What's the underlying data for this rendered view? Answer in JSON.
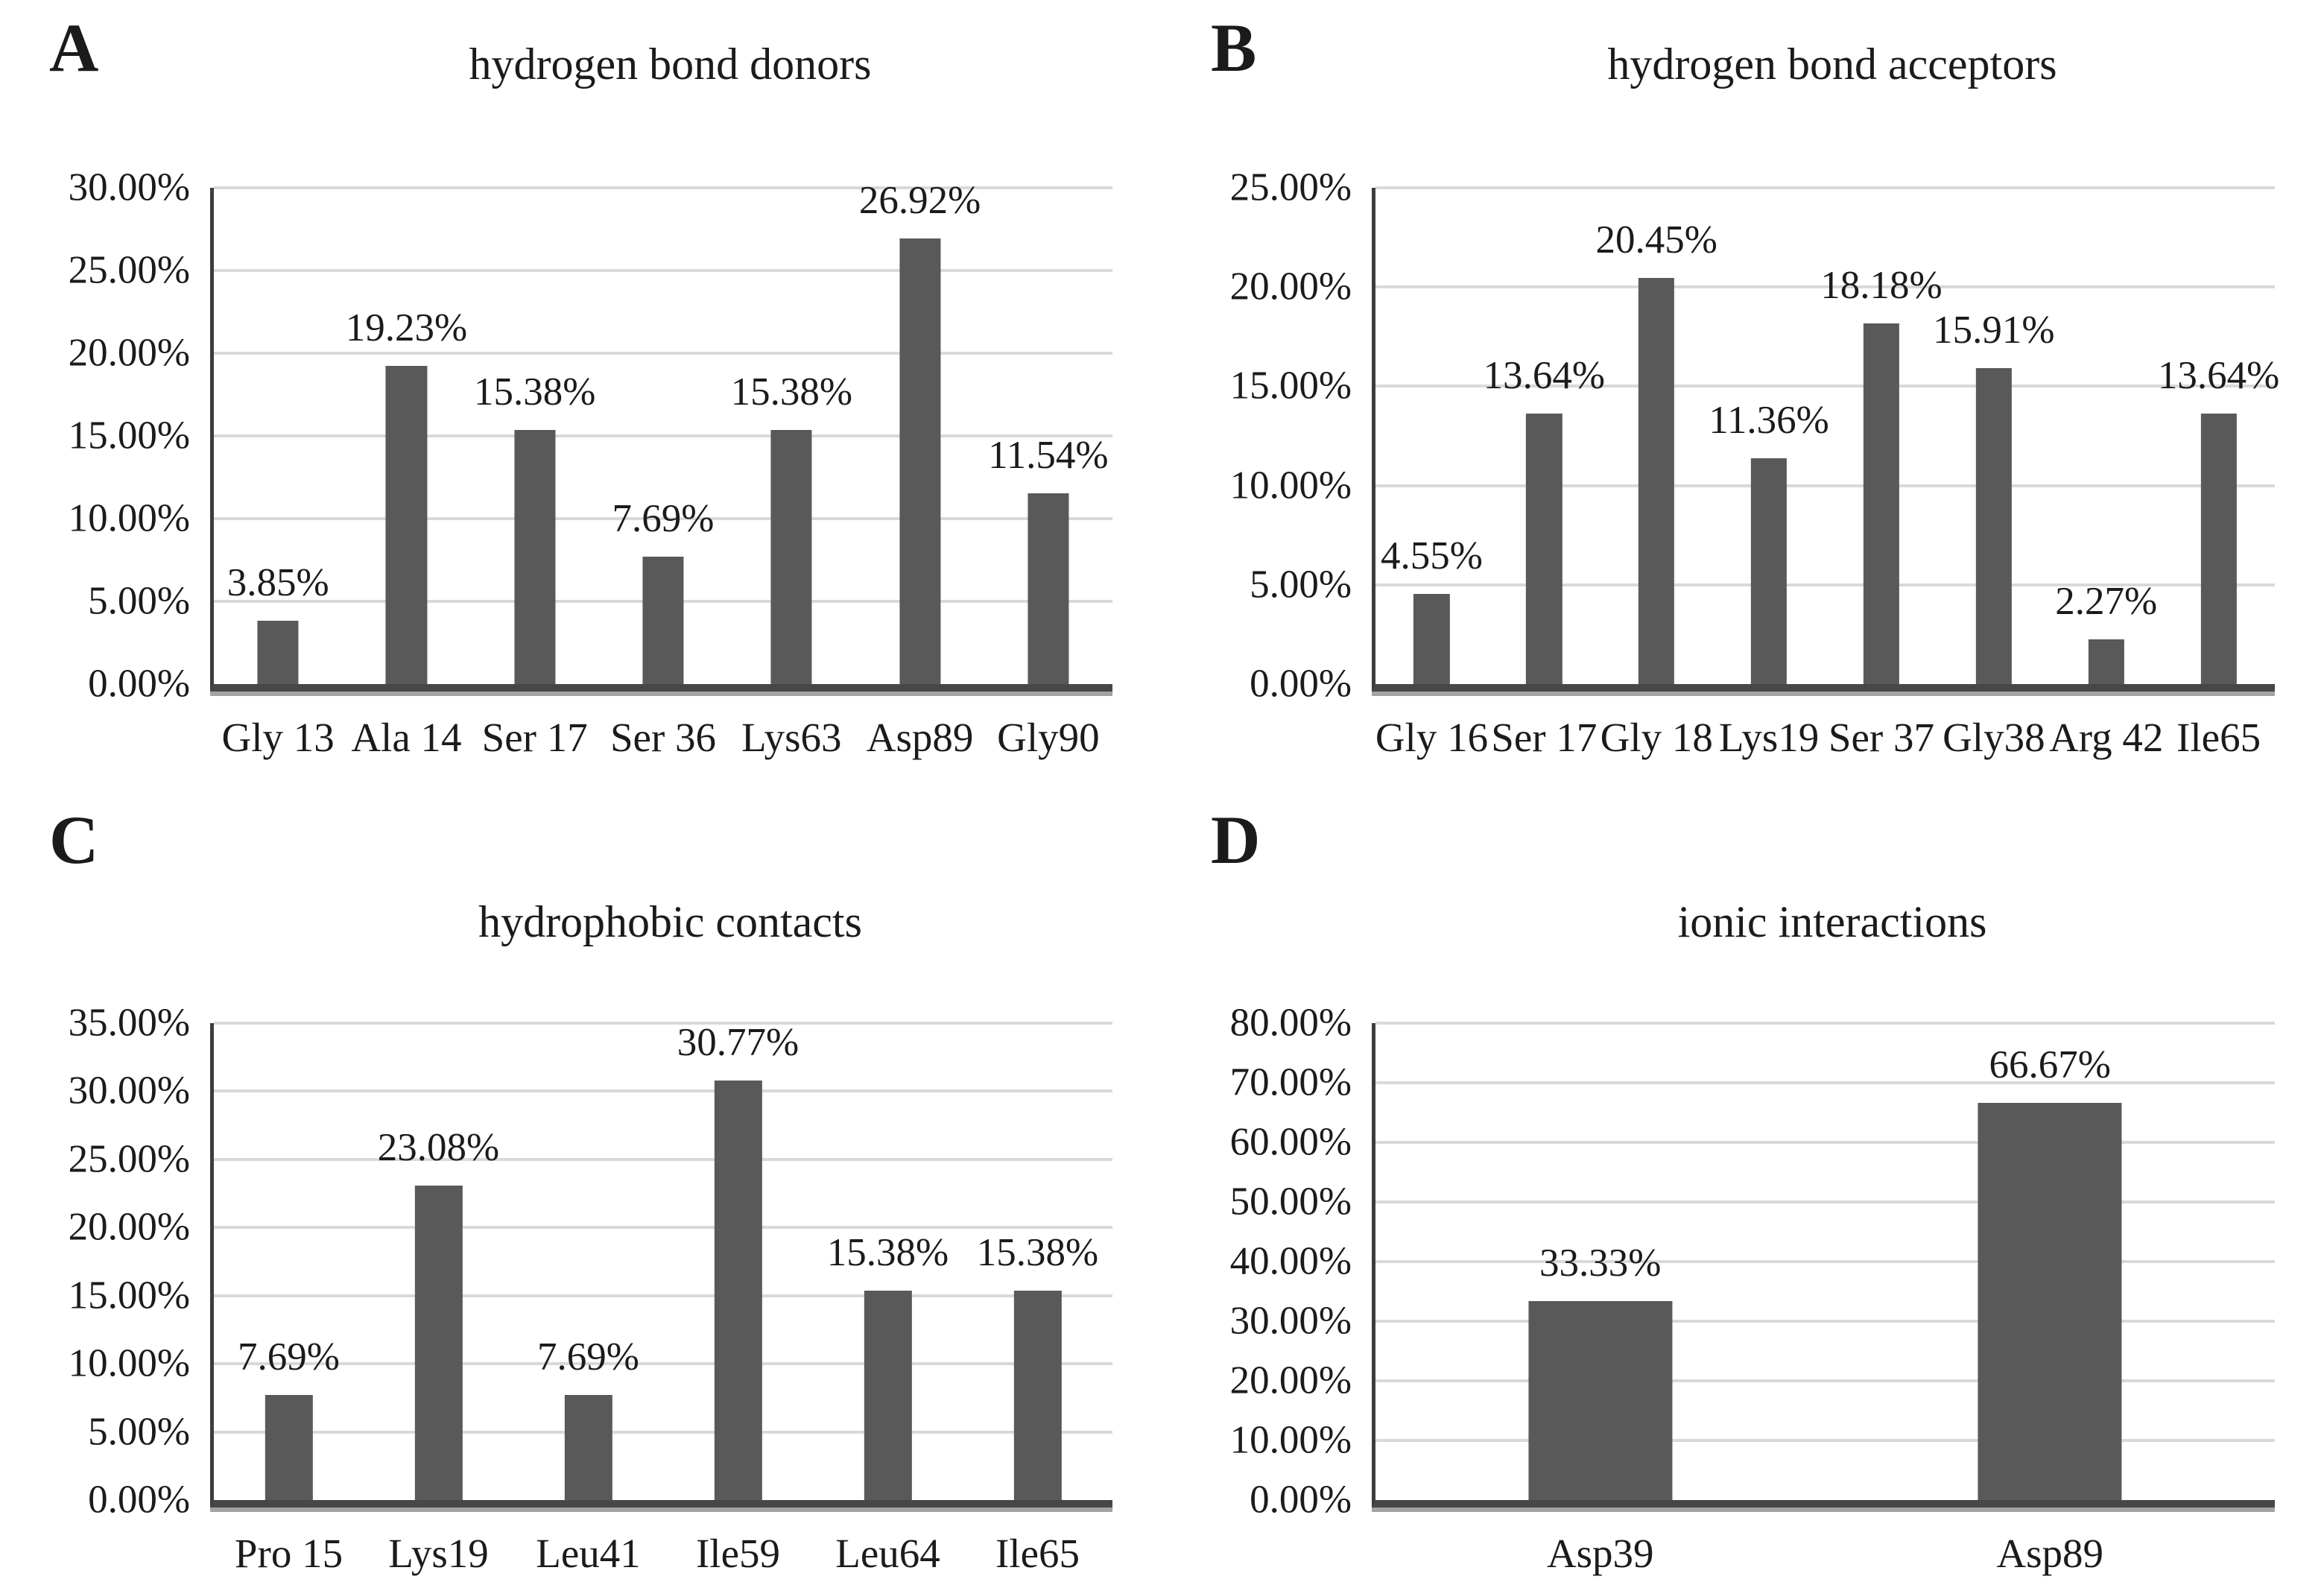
{
  "figure": {
    "background": "#ffffff",
    "bar_color": "#595959",
    "grid_color": "#d9d9d9",
    "axis_color": "#3d3d3d",
    "text_color": "#1b1b1b"
  },
  "chart_data": [
    {
      "type": "bar",
      "panel": "A",
      "title": "hydrogen bond donors",
      "categories": [
        "Gly 13",
        "Ala 14",
        "Ser 17",
        "Ser 36",
        "Lys63",
        "Asp89",
        "Gly90"
      ],
      "values": [
        3.85,
        19.23,
        15.38,
        7.69,
        15.38,
        26.92,
        11.54
      ],
      "value_labels": [
        "3.85%",
        "19.23%",
        "15.38%",
        "7.69%",
        "15.38%",
        "26.92%",
        "11.54%"
      ],
      "ylim": [
        0,
        30
      ],
      "ytick_step": 5,
      "ytick_labels": [
        "0.00%",
        "5.00%",
        "10.00%",
        "15.00%",
        "20.00%",
        "25.00%",
        "30.00%"
      ],
      "grid": true,
      "legend": null
    },
    {
      "type": "bar",
      "panel": "B",
      "title": "hydrogen bond acceptors",
      "categories": [
        "Gly 16",
        "Ser 17",
        "Gly 18",
        "Lys19",
        "Ser 37",
        "Gly38",
        "Arg 42",
        "Ile65"
      ],
      "values": [
        4.55,
        13.64,
        20.45,
        11.36,
        18.18,
        15.91,
        2.27,
        13.64
      ],
      "value_labels": [
        "4.55%",
        "13.64%",
        "20.45%",
        "11.36%",
        "18.18%",
        "15.91%",
        "2.27%",
        "13.64%"
      ],
      "ylim": [
        0,
        25
      ],
      "ytick_step": 5,
      "ytick_labels": [
        "0.00%",
        "5.00%",
        "10.00%",
        "15.00%",
        "20.00%",
        "25.00%"
      ],
      "grid": true,
      "legend": null
    },
    {
      "type": "bar",
      "panel": "C",
      "title": "hydrophobic contacts",
      "categories": [
        "Pro 15",
        "Lys19",
        "Leu41",
        "Ile59",
        "Leu64",
        "Ile65"
      ],
      "values": [
        7.69,
        23.08,
        7.69,
        30.77,
        15.38,
        15.38
      ],
      "value_labels": [
        "7.69%",
        "23.08%",
        "7.69%",
        "30.77%",
        "15.38%",
        "15.38%"
      ],
      "ylim": [
        0,
        35
      ],
      "ytick_step": 5,
      "ytick_labels": [
        "0.00%",
        "5.00%",
        "10.00%",
        "15.00%",
        "20.00%",
        "25.00%",
        "30.00%",
        "35.00%"
      ],
      "grid": true,
      "legend": null
    },
    {
      "type": "bar",
      "panel": "D",
      "title": "ionic interactions",
      "categories": [
        "Asp39",
        "Asp89"
      ],
      "values": [
        33.33,
        66.67
      ],
      "value_labels": [
        "33.33%",
        "66.67%"
      ],
      "ylim": [
        0,
        80
      ],
      "ytick_step": 10,
      "ytick_labels": [
        "0.00%",
        "10.00%",
        "20.00%",
        "30.00%",
        "40.00%",
        "50.00%",
        "60.00%",
        "70.00%",
        "80.00%"
      ],
      "grid": true,
      "legend": null
    }
  ]
}
